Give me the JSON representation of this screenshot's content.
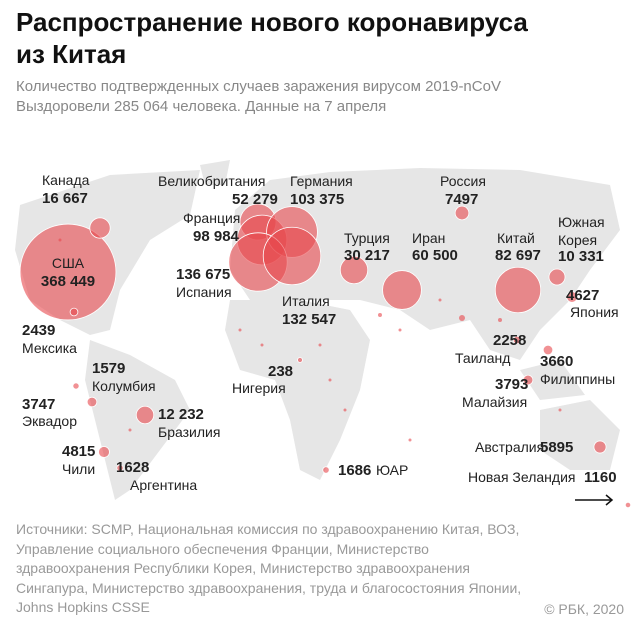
{
  "header": {
    "title": "Распространение нового коронавируса из Китая",
    "subtitle_lines": [
      "Количество подтвержденных случаев заражения вирусом 2019-nCoV",
      "Выздоровели 285 064 человека. Данные на 7 апреля"
    ]
  },
  "map": {
    "markers": [
      {
        "name": "США",
        "value": 368449,
        "value_label": "368 449"
      },
      {
        "name": "Канада",
        "value": 16667,
        "value_label": "16 667"
      },
      {
        "name": "Мексика",
        "value": 2439
      },
      {
        "name": "Колумбия",
        "value": 1579
      },
      {
        "name": "Эквадор",
        "value": 3747
      },
      {
        "name": "Бразилия",
        "value": 12232,
        "value_label": "12 232"
      },
      {
        "name": "Чили",
        "value": 4815
      },
      {
        "name": "Аргентина",
        "value": 1628
      },
      {
        "name": "Великобритания",
        "value": 52279,
        "value_label": "52 279"
      },
      {
        "name": "Франция",
        "value": 98984,
        "value_label": "98 984"
      },
      {
        "name": "Германия",
        "value": 103375,
        "value_label": "103 375"
      },
      {
        "name": "Испания",
        "value": 136675,
        "value_label": "136 675"
      },
      {
        "name": "Италия",
        "value": 132547,
        "value_label": "132 547"
      },
      {
        "name": "Турция",
        "value": 30217,
        "value_label": "30 217"
      },
      {
        "name": "Иран",
        "value": 60500,
        "value_label": "60 500"
      },
      {
        "name": "Россия",
        "value": 7497
      },
      {
        "name": "Китай",
        "value": 82697,
        "value_label": "82 697"
      },
      {
        "name": "Южная Корея",
        "value": 10331,
        "value_label": "10 331"
      },
      {
        "name": "Япония",
        "value": 4627
      },
      {
        "name": "Таиланд",
        "value": 2258
      },
      {
        "name": "Филиппины",
        "value": 3660
      },
      {
        "name": "Малайзия",
        "value": 3793
      },
      {
        "name": "Нигерия",
        "value": 238
      },
      {
        "name": "ЮАР",
        "value": 1686
      },
      {
        "name": "Австралия",
        "value": 5895
      },
      {
        "name": "Новая Зеландия",
        "value": 1160
      }
    ]
  },
  "footer": {
    "sources": "Источники: SCMP, Национальная комиссия по здравоохранению Китая, ВОЗ, Управление социального обеспечения Франции, Министерство здравоохранения Республики Корея, Министерство здравоохранения Сингапура, Министерство здравоохранения, труда и благосостояния Японии, Johns Hopkins CSSE",
    "copyright": "© РБК, 2020"
  }
}
